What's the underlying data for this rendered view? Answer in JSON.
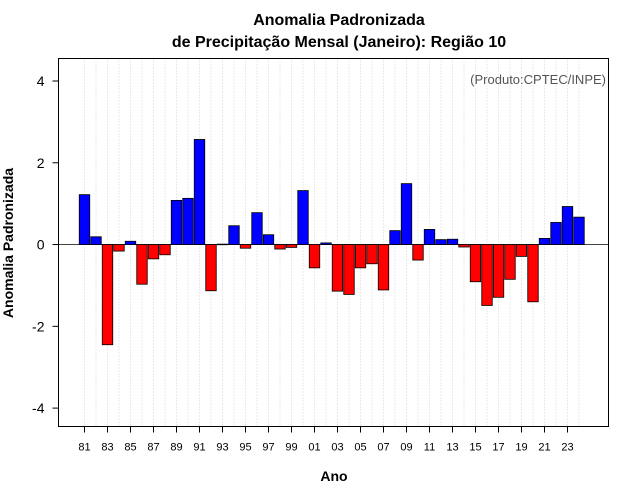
{
  "chart_data": {
    "type": "bar",
    "title": "Anomalia Padronizada",
    "subtitle": "de Precipitação Mensal (Janeiro): Região 10",
    "xlabel": "Ano",
    "ylabel": "Anomalia Padronizada",
    "credit": "(Produto:CPTEC/INPE)",
    "ylim": [
      -4.45,
      4.55
    ],
    "yticks": [
      -4,
      -2,
      0,
      2,
      4
    ],
    "xtick_labels": [
      "81",
      "83",
      "85",
      "87",
      "89",
      "91",
      "93",
      "95",
      "97",
      "99",
      "01",
      "03",
      "05",
      "07",
      "09",
      "11",
      "13",
      "15",
      "17",
      "19",
      "21",
      "23"
    ],
    "xtick_every": 2,
    "categories": [
      "81",
      "82",
      "83",
      "84",
      "85",
      "86",
      "87",
      "88",
      "89",
      "90",
      "91",
      "92",
      "93",
      "94",
      "95",
      "96",
      "97",
      "98",
      "99",
      "00",
      "01",
      "02",
      "03",
      "04",
      "05",
      "06",
      "07",
      "08",
      "09",
      "10",
      "11",
      "12",
      "13",
      "14",
      "15",
      "16",
      "17",
      "18",
      "19",
      "20",
      "21",
      "22",
      "23",
      "24"
    ],
    "values": [
      1.22,
      0.19,
      -2.45,
      -0.16,
      0.08,
      -0.97,
      -0.35,
      -0.25,
      1.08,
      1.13,
      2.57,
      -1.13,
      0.01,
      0.46,
      -0.09,
      0.78,
      0.24,
      -0.11,
      -0.07,
      1.32,
      -0.57,
      0.04,
      -1.14,
      -1.22,
      -0.57,
      -0.47,
      -1.11,
      0.34,
      1.49,
      -0.38,
      0.37,
      0.12,
      0.13,
      -0.06,
      -0.91,
      -1.49,
      -1.29,
      -0.85,
      -0.29,
      -1.4,
      0.15,
      0.54,
      0.93,
      0.67
    ],
    "grid": "vertical dotted",
    "colors": {
      "positive": "#0000ff",
      "negative": "#ff0000",
      "grid": "#cccccc",
      "axis": "#000000",
      "zero_line": "#444444"
    }
  }
}
